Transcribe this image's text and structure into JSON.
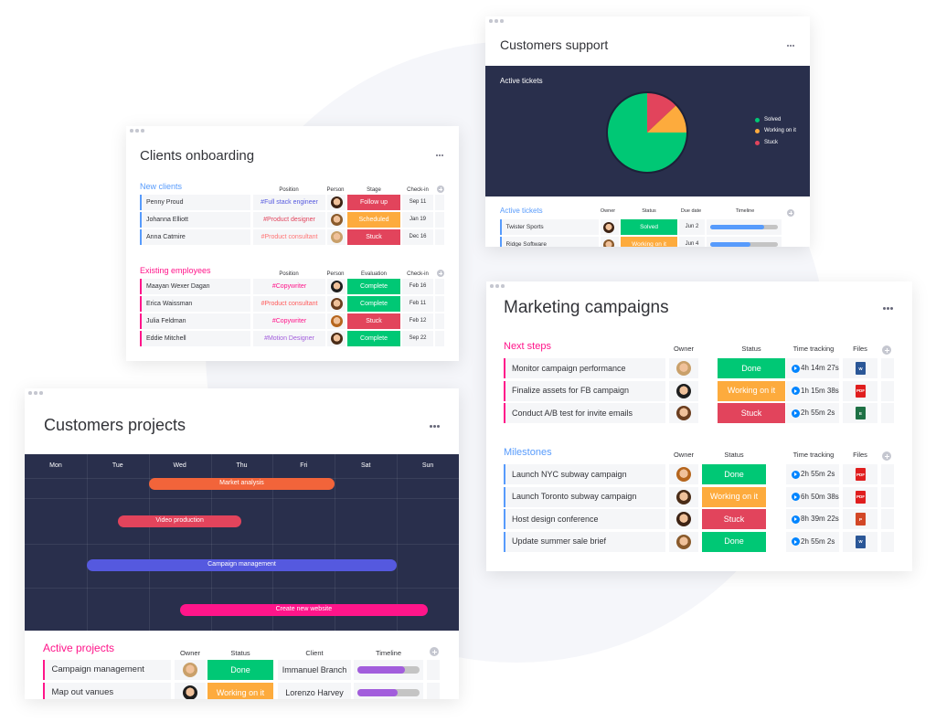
{
  "customers_support": {
    "title": "Customers support",
    "chart": {
      "title": "Active tickets",
      "labels": [
        "Solved",
        "Working on it",
        "Stuck"
      ],
      "values": [
        75,
        12,
        13
      ],
      "colors": [
        "#00c875",
        "#fdab3d",
        "#e2445c"
      ]
    },
    "table": {
      "group": "Active tickets",
      "color": "#579bfc",
      "headers": [
        "Owner",
        "Status",
        "Due date",
        "Timeline"
      ],
      "rows": [
        {
          "name": "Twister Sports",
          "status": {
            "text": "Solved",
            "color": "#00c875"
          },
          "due": "Jun 2",
          "timeline": 0.8
        },
        {
          "name": "Ridge Software",
          "status": {
            "text": "Working on it",
            "color": "#fdab3d"
          },
          "due": "Jun 4",
          "timeline": 0.6
        }
      ]
    }
  },
  "clients_onboarding": {
    "title": "Clients onboarding",
    "groups": [
      {
        "name": "New clients",
        "color": "#579bfc",
        "headers": [
          "Position",
          "Person",
          "Stage",
          "Check-in"
        ],
        "rows": [
          {
            "name": "Penny Proud",
            "position": {
              "text": "#Full stack engineer",
              "color": "#5559df"
            },
            "stage": {
              "text": "Follow up",
              "color": "#e2445c"
            },
            "checkin": "Sep 11"
          },
          {
            "name": "Johanna Elliott",
            "position": {
              "text": "#Product designer",
              "color": "#e2445c"
            },
            "stage": {
              "text": "Scheduled",
              "color": "#fdab3d"
            },
            "checkin": "Jan 19"
          },
          {
            "name": "Anna Catmire",
            "position": {
              "text": "#Product consultant",
              "color": "#ff7575"
            },
            "stage": {
              "text": "Stuck",
              "color": "#e2445c"
            },
            "checkin": "Dec 16"
          }
        ]
      },
      {
        "name": "Existing employees",
        "color": "#ff158a",
        "headers": [
          "Position",
          "Person",
          "Evaluation",
          "Check-in"
        ],
        "rows": [
          {
            "name": "Maayan Wexer Dagan",
            "position": {
              "text": "#Copywriter",
              "color": "#ff158a"
            },
            "stage": {
              "text": "Complete",
              "color": "#00c875"
            },
            "checkin": "Feb 16"
          },
          {
            "name": "Erica Waissman",
            "position": {
              "text": "#Product consultant",
              "color": "#ff5a5a"
            },
            "stage": {
              "text": "Complete",
              "color": "#00c875"
            },
            "checkin": "Feb 11"
          },
          {
            "name": "Julia Feldman",
            "position": {
              "text": "#Copywriter",
              "color": "#ff158a"
            },
            "stage": {
              "text": "Stuck",
              "color": "#e2445c"
            },
            "checkin": "Feb 12"
          },
          {
            "name": "Eddie Mitchell",
            "position": {
              "text": "#Motion Designer",
              "color": "#a25ddc"
            },
            "stage": {
              "text": "Complete",
              "color": "#00c875"
            },
            "checkin": "Sep 22"
          }
        ]
      }
    ]
  },
  "marketing_campaigns": {
    "title": "Marketing campaigns",
    "groups": [
      {
        "name": "Next steps",
        "color": "#ff158a",
        "headers": [
          "Owner",
          "Status",
          "Time tracking",
          "Files"
        ],
        "rows": [
          {
            "name": "Monitor campaign performance",
            "status": {
              "text": "Done",
              "color": "#00c875"
            },
            "time": "4h 14m 27s",
            "file": {
              "text": "W",
              "color": "#2b5797"
            }
          },
          {
            "name": "Finalize assets for FB campaign",
            "status": {
              "text": "Working on it",
              "color": "#fdab3d"
            },
            "time": "1h 15m 38s",
            "file": {
              "text": "PDF",
              "color": "#e01e1e"
            }
          },
          {
            "name": "Conduct A/B test for invite emails",
            "status": {
              "text": "Stuck",
              "color": "#e2445c"
            },
            "time": "2h 55m 2s",
            "file": {
              "text": "E",
              "color": "#1e7145"
            }
          }
        ]
      },
      {
        "name": "Milestones",
        "color": "#579bfc",
        "headers": [
          "Owner",
          "Status",
          "Time tracking",
          "Files"
        ],
        "rows": [
          {
            "name": "Launch NYC subway campaign",
            "status": {
              "text": "Done",
              "color": "#00c875"
            },
            "time": "2h 55m 2s",
            "file": {
              "text": "PDF",
              "color": "#e01e1e"
            }
          },
          {
            "name": "Launch Toronto subway campaign",
            "status": {
              "text": "Working on it",
              "color": "#fdab3d"
            },
            "time": "6h 50m 38s",
            "file": {
              "text": "PDF",
              "color": "#e01e1e"
            }
          },
          {
            "name": "Host design conference",
            "status": {
              "text": "Stuck",
              "color": "#e2445c"
            },
            "time": "8h 39m 22s",
            "file": {
              "text": "P",
              "color": "#d24726"
            }
          },
          {
            "name": "Update summer sale brief",
            "status": {
              "text": "Done",
              "color": "#00c875"
            },
            "time": "2h 55m 2s",
            "file": {
              "text": "W",
              "color": "#2b5797"
            }
          }
        ]
      }
    ]
  },
  "customers_projects": {
    "title": "Customers projects",
    "days": [
      "Mon",
      "Tue",
      "Wed",
      "Thu",
      "Fri",
      "Sat",
      "Sun"
    ],
    "tasks": [
      {
        "name": "Market analysis",
        "color": "#f2643a",
        "start": 2,
        "end": 5
      },
      {
        "name": "Video production",
        "color": "#e2445c",
        "start": 1.5,
        "end": 3.5
      },
      {
        "name": "Campaign management",
        "color": "#5559df",
        "start": 1,
        "end": 6
      },
      {
        "name": "Create new website",
        "color": "#ff158a",
        "start": 2.5,
        "end": 6.5
      }
    ],
    "table": {
      "group": "Active projects",
      "color": "#ff158a",
      "headers": [
        "Owner",
        "Status",
        "Client",
        "Timeline"
      ],
      "rows": [
        {
          "name": "Campaign management",
          "status": {
            "text": "Done",
            "color": "#00c875"
          },
          "client": "Immanuel Branch",
          "timeline": 0.77
        },
        {
          "name": "Map out vanues",
          "status": {
            "text": "Working on it",
            "color": "#fdab3d"
          },
          "client": "Lorenzo Harvey",
          "timeline": 0.65
        }
      ]
    }
  }
}
